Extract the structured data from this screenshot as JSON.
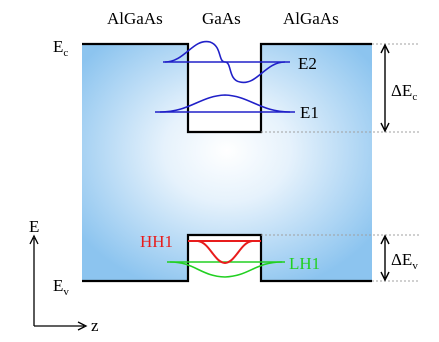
{
  "regions": {
    "left": "AlGaAs",
    "middle": "GaAs",
    "right": "AlGaAs"
  },
  "band_edges": {
    "conduction": {
      "base": "E",
      "sub": "c"
    },
    "valence": {
      "base": "E",
      "sub": "v"
    }
  },
  "levels": {
    "e2": "E2",
    "e1": "E1",
    "hh1": "HH1",
    "lh1": "LH1"
  },
  "offsets": {
    "conduction": {
      "base": "ΔE",
      "sub": "c"
    },
    "valence": {
      "base": "ΔE",
      "sub": "v"
    }
  },
  "axes": {
    "energy": "E",
    "position": "z"
  },
  "colors": {
    "barrier_edge": "#8cc4ef",
    "barrier_center": "#ffffff",
    "electron_level": "#2020c8",
    "hh_level": "#e81c1c",
    "lh_level": "#22d022",
    "guide": "#a0a0a0"
  }
}
